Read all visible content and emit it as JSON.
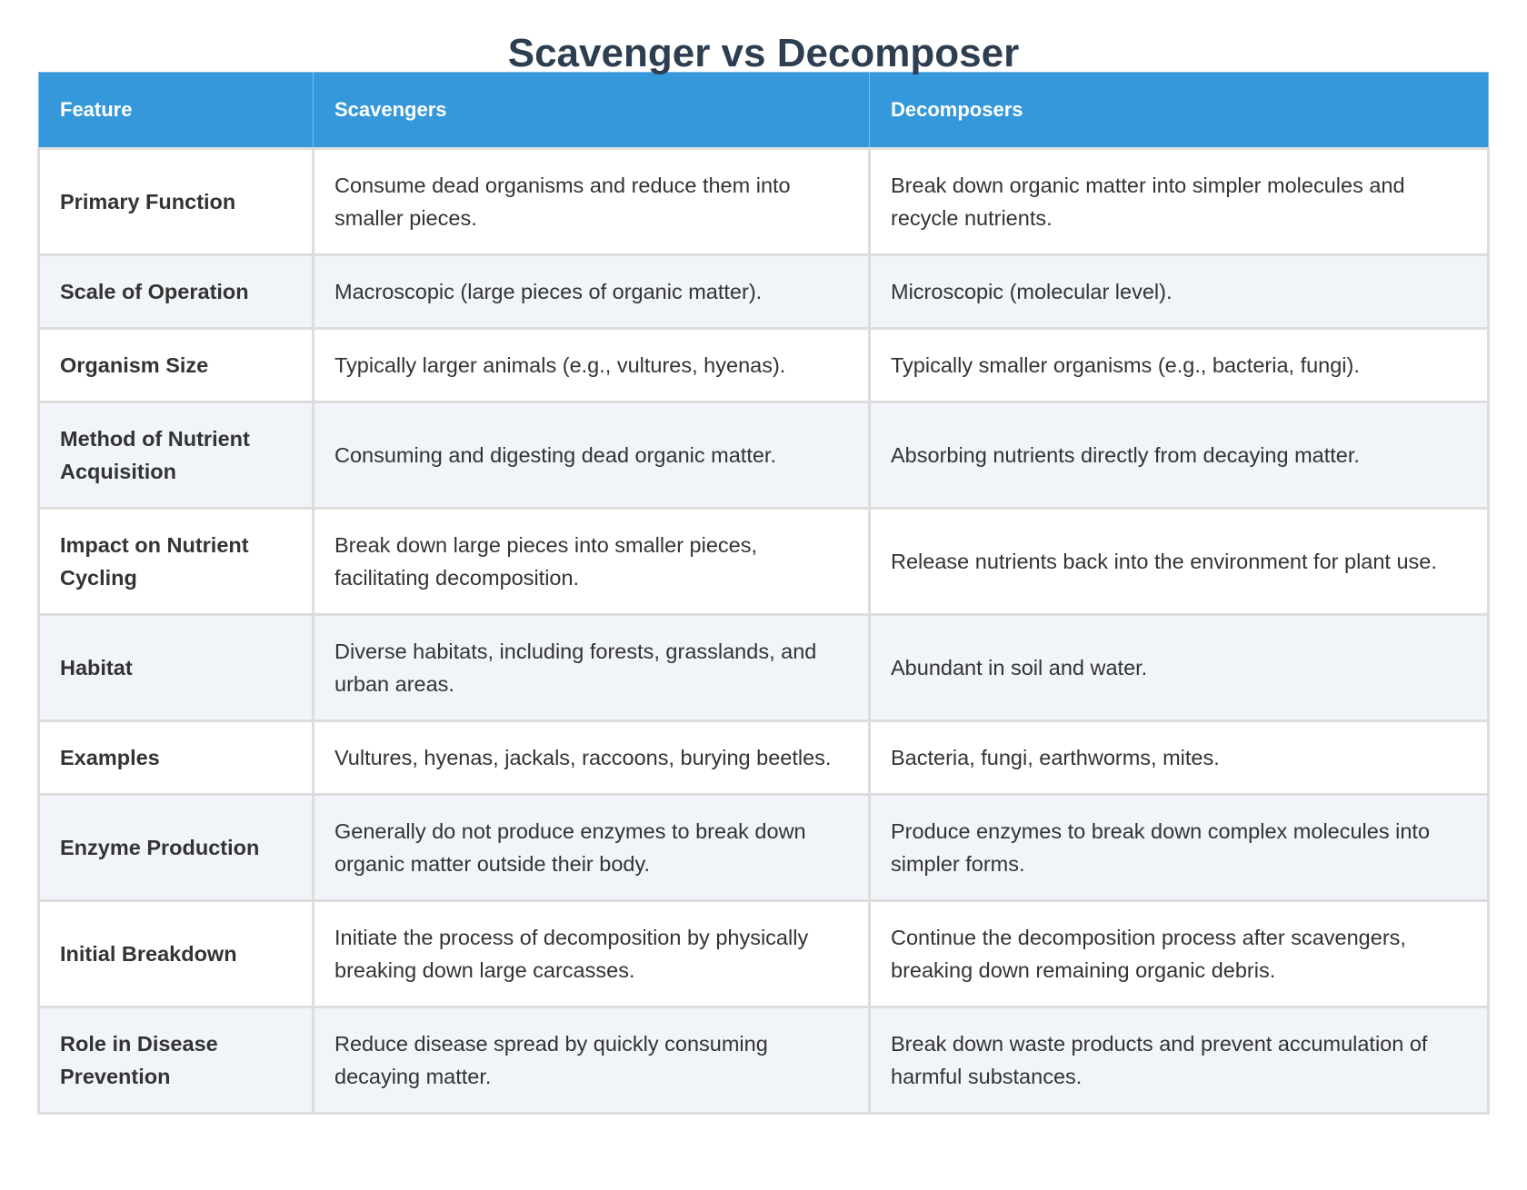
{
  "title": "Scavenger vs Decomposer",
  "colors": {
    "header_bg": "#3498db",
    "title": "#2c3e50",
    "alt_row": "#f1f4f9"
  },
  "headers": [
    "Feature",
    "Scavengers",
    "Decomposers"
  ],
  "rows": [
    [
      "Primary Function",
      "Consume dead organisms and reduce them into smaller pieces.",
      "Break down organic matter into simpler molecules and recycle nutrients."
    ],
    [
      "Scale of Operation",
      "Macroscopic (large pieces of organic matter).",
      "Microscopic (molecular level)."
    ],
    [
      "Organism Size",
      "Typically larger animals (e.g., vultures, hyenas).",
      "Typically smaller organisms (e.g., bacteria, fungi)."
    ],
    [
      "Method of Nutrient Acquisition",
      "Consuming and digesting dead organic matter.",
      "Absorbing nutrients directly from decaying matter."
    ],
    [
      "Impact on Nutrient Cycling",
      "Break down large pieces into smaller pieces, facilitating decomposition.",
      "Release nutrients back into the environment for plant use."
    ],
    [
      "Habitat",
      "Diverse habitats, including forests, grasslands, and urban areas.",
      "Abundant in soil and water."
    ],
    [
      "Examples",
      "Vultures, hyenas, jackals, raccoons, burying beetles.",
      "Bacteria, fungi, earthworms, mites."
    ],
    [
      "Enzyme Production",
      "Generally do not produce enzymes to break down organic matter outside their body.",
      "Produce enzymes to break down complex molecules into simpler forms."
    ],
    [
      "Initial Breakdown",
      "Initiate the process of decomposition by physically breaking down large carcasses.",
      "Continue the decomposition process after scavengers, breaking down remaining organic debris."
    ],
    [
      "Role in Disease Prevention",
      "Reduce disease spread by quickly consuming decaying matter.",
      "Break down waste products and prevent accumulation of harmful substances."
    ]
  ]
}
